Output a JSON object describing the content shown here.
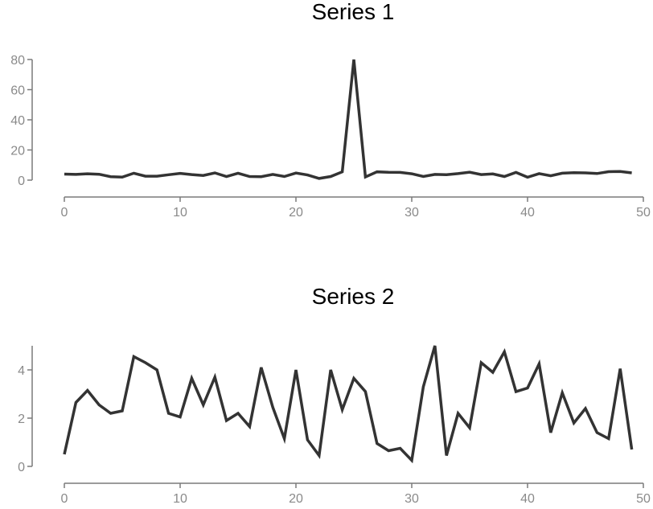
{
  "colors": {
    "line": "#333333",
    "axis": "#7a7a7a",
    "tick_label": "#8a8a8a",
    "title": "#000000",
    "background": "#ffffff"
  },
  "chart_data": [
    {
      "type": "line",
      "title": "Series 1",
      "xlabel": "",
      "ylabel": "",
      "xlim": [
        0,
        50
      ],
      "ylim": [
        0,
        80
      ],
      "xticks": [
        0,
        10,
        20,
        30,
        40,
        50
      ],
      "yticks": [
        0,
        20,
        40,
        60,
        80
      ],
      "grid": false,
      "series": [
        {
          "x": [
            0,
            1,
            2,
            3,
            4,
            5,
            6,
            7,
            8,
            9,
            10,
            11,
            12,
            13,
            14,
            15,
            16,
            17,
            18,
            19,
            20,
            21,
            22,
            23,
            24,
            25,
            26,
            27,
            28,
            29,
            30,
            31,
            32,
            33,
            34,
            35,
            36,
            37,
            38,
            39,
            40,
            41,
            42,
            43,
            44,
            45,
            46,
            47,
            48,
            49
          ],
          "values": [
            4,
            3.8,
            4.2,
            3.9,
            2.3,
            2,
            4.6,
            2.6,
            2.6,
            3.6,
            4.5,
            3.7,
            3.1,
            4.8,
            2.4,
            4.6,
            2.4,
            2.3,
            3.8,
            2.4,
            4.7,
            3.4,
            1.1,
            2.4,
            5.5,
            80,
            2.1,
            5.5,
            5.2,
            5.1,
            4.2,
            2.4,
            3.8,
            3.6,
            4.3,
            5.3,
            3.7,
            4.1,
            2.4,
            5.1,
            1.9,
            4.3,
            2.9,
            4.6,
            4.9,
            4.8,
            4.4,
            5.6,
            5.7,
            4.8
          ]
        }
      ]
    },
    {
      "type": "line",
      "title": "Series 2",
      "xlabel": "",
      "ylabel": "",
      "xlim": [
        0,
        50
      ],
      "ylim": [
        0,
        5
      ],
      "xticks": [
        0,
        10,
        20,
        30,
        40,
        50
      ],
      "yticks": [
        0,
        2,
        4
      ],
      "grid": false,
      "series": [
        {
          "x": [
            0,
            1,
            2,
            3,
            4,
            5,
            6,
            7,
            8,
            9,
            10,
            11,
            12,
            13,
            14,
            15,
            16,
            17,
            18,
            19,
            20,
            21,
            22,
            23,
            24,
            25,
            26,
            27,
            28,
            29,
            30,
            31,
            32,
            33,
            34,
            35,
            36,
            37,
            38,
            39,
            40,
            41,
            42,
            43,
            44,
            45,
            46,
            47,
            48,
            49
          ],
          "values": [
            0.5,
            2.65,
            3.15,
            2.55,
            2.2,
            2.3,
            4.55,
            4.3,
            4.0,
            2.2,
            2.05,
            3.65,
            2.55,
            3.7,
            1.9,
            2.2,
            1.65,
            4.1,
            2.45,
            1.15,
            4.0,
            1.1,
            0.45,
            4.0,
            2.35,
            3.65,
            3.1,
            0.95,
            0.65,
            0.75,
            0.25,
            3.3,
            5.0,
            0.45,
            2.2,
            1.6,
            4.3,
            3.9,
            4.75,
            3.1,
            3.25,
            4.25,
            1.4,
            3.05,
            1.8,
            2.4,
            1.4,
            1.15,
            4.05,
            0.7
          ]
        }
      ]
    }
  ]
}
